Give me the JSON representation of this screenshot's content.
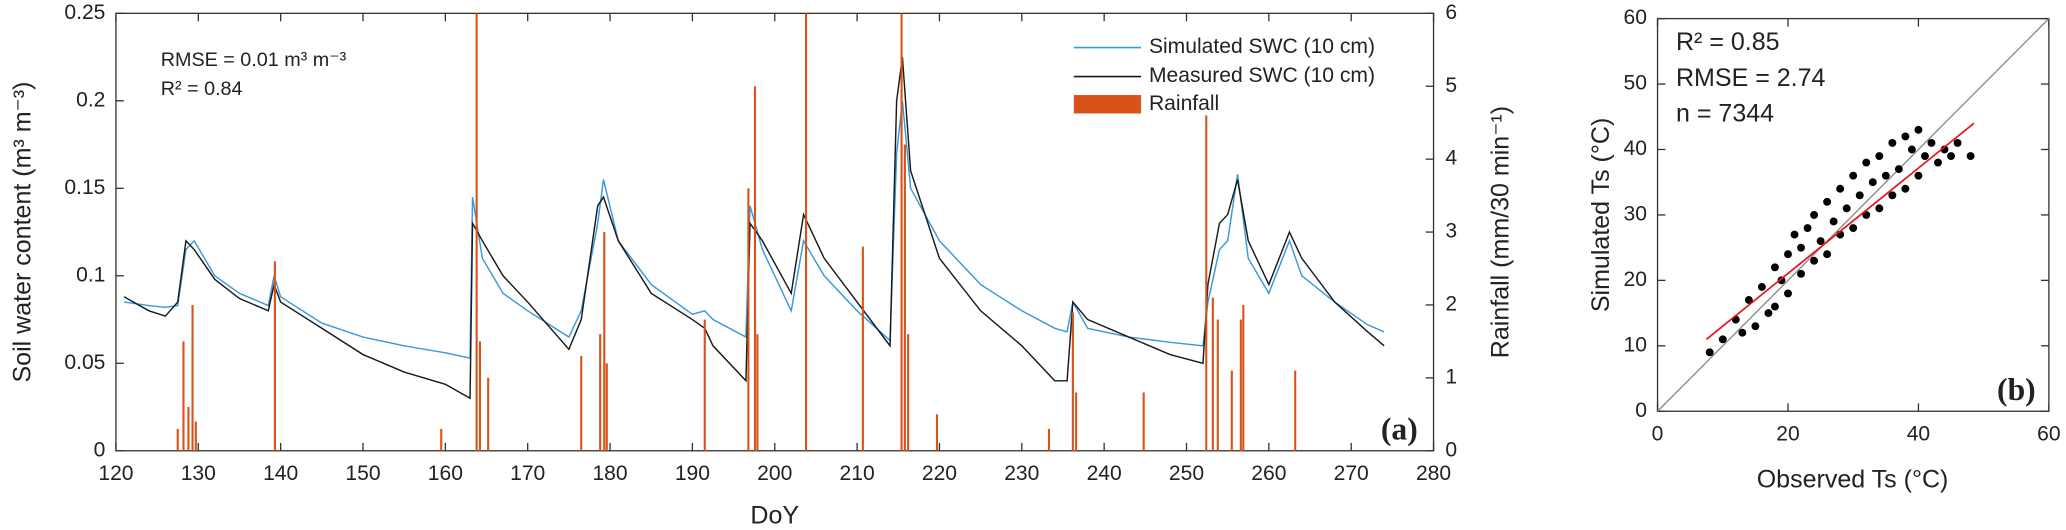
{
  "chart_data": [
    {
      "type": "line",
      "xlabel": "DoY",
      "ylabel": "Soil water content (m³ m⁻³)",
      "y2label": "Rainfall (mm/30 min⁻¹)",
      "annotations": [
        "RMSE = 0.01 m³ m⁻³",
        "R² = 0.84"
      ],
      "panel_label": "(a)",
      "legend": "upper right",
      "xlim": [
        120,
        280
      ],
      "xticks": [
        120,
        130,
        140,
        150,
        160,
        170,
        180,
        190,
        200,
        210,
        220,
        230,
        240,
        250,
        260,
        270,
        280
      ],
      "ylim": [
        0,
        0.25
      ],
      "yticks": [
        0,
        0.05,
        0.1,
        0.15,
        0.2,
        0.25
      ],
      "y2lim": [
        0,
        6
      ],
      "y2ticks": [
        0,
        1,
        2,
        3,
        4,
        5,
        6
      ],
      "series": [
        {
          "name": "Simulated SWC (10 cm)",
          "color": "#3a9ad9",
          "x": [
            121,
            124,
            126,
            127.5,
            128.5,
            129.5,
            132,
            135,
            138.5,
            139.2,
            140,
            145,
            150,
            155,
            160,
            163,
            163.3,
            164.5,
            167,
            170,
            175,
            176.5,
            178.5,
            179.2,
            181,
            185,
            190,
            191.5,
            192.5,
            196.5,
            197,
            198.5,
            202,
            203.5,
            206,
            210,
            214,
            214.8,
            215.5,
            216.5,
            220,
            225,
            230,
            234,
            235.5,
            236.2,
            238,
            243,
            248,
            252,
            252.6,
            254,
            255,
            256.2,
            257.5,
            260,
            262.5,
            264,
            268,
            272,
            274
          ],
          "values": [
            0.085,
            0.083,
            0.082,
            0.083,
            0.115,
            0.12,
            0.1,
            0.09,
            0.083,
            0.1,
            0.088,
            0.073,
            0.065,
            0.06,
            0.056,
            0.053,
            0.145,
            0.11,
            0.09,
            0.08,
            0.065,
            0.08,
            0.13,
            0.155,
            0.12,
            0.095,
            0.078,
            0.08,
            0.075,
            0.065,
            0.14,
            0.115,
            0.08,
            0.12,
            0.1,
            0.08,
            0.063,
            0.17,
            0.2,
            0.15,
            0.12,
            0.095,
            0.08,
            0.07,
            0.068,
            0.085,
            0.07,
            0.065,
            0.062,
            0.06,
            0.085,
            0.115,
            0.12,
            0.158,
            0.11,
            0.09,
            0.12,
            0.1,
            0.085,
            0.072,
            0.068
          ]
        },
        {
          "name": "Measured SWC (10 cm)",
          "color": "#1a1a1a",
          "x": [
            121,
            124,
            126,
            127.5,
            128.5,
            129.5,
            132,
            135,
            138.5,
            139.2,
            140,
            145,
            150,
            155,
            160,
            163,
            163.3,
            164.5,
            167,
            170,
            175,
            176.5,
            178.5,
            179.2,
            181,
            185,
            190,
            191.5,
            192.5,
            196.5,
            197,
            198.5,
            202,
            203.5,
            206,
            210,
            214,
            214.8,
            215.5,
            216.5,
            220,
            225,
            230,
            234,
            235.5,
            236.2,
            238,
            243,
            248,
            252,
            252.6,
            254,
            255,
            256.2,
            257.5,
            260,
            262.5,
            264,
            268,
            272,
            274
          ],
          "values": [
            0.088,
            0.08,
            0.077,
            0.085,
            0.12,
            0.115,
            0.098,
            0.087,
            0.08,
            0.095,
            0.085,
            0.07,
            0.055,
            0.045,
            0.038,
            0.03,
            0.13,
            0.12,
            0.1,
            0.085,
            0.058,
            0.075,
            0.14,
            0.145,
            0.12,
            0.09,
            0.075,
            0.07,
            0.06,
            0.04,
            0.13,
            0.12,
            0.09,
            0.135,
            0.11,
            0.085,
            0.06,
            0.2,
            0.225,
            0.16,
            0.11,
            0.08,
            0.06,
            0.04,
            0.04,
            0.085,
            0.075,
            0.065,
            0.055,
            0.05,
            0.095,
            0.13,
            0.135,
            0.155,
            0.12,
            0.095,
            0.125,
            0.11,
            0.085,
            0.068,
            0.06
          ]
        },
        {
          "name": "Rainfall",
          "type": "bar",
          "axis": "y2",
          "color": "#d95319",
          "x": [
            127.5,
            128.2,
            128.8,
            129.3,
            129.7,
            139.3,
            159.5,
            163.8,
            164.2,
            165.2,
            176.5,
            178.8,
            179.3,
            179.6,
            191.5,
            196.8,
            197.6,
            197.9,
            203.8,
            210.7,
            215.4,
            215.8,
            216.2,
            219.7,
            233.3,
            236.2,
            236.6,
            244.8,
            252.4,
            253.2,
            253.8,
            255.5,
            256.6,
            256.9,
            263.2
          ],
          "values": [
            0.3,
            1.5,
            0.6,
            2.0,
            0.4,
            2.6,
            0.3,
            6.0,
            1.5,
            1.0,
            1.3,
            1.6,
            3.0,
            1.2,
            1.8,
            3.6,
            5.0,
            1.6,
            6.0,
            2.8,
            6.0,
            4.2,
            1.6,
            0.5,
            0.3,
            1.9,
            0.8,
            0.8,
            4.6,
            2.1,
            1.8,
            1.1,
            1.8,
            2.0,
            1.1
          ]
        }
      ]
    },
    {
      "type": "scatter",
      "xlabel": "Observed Ts (°C)",
      "ylabel": "Simulated Ts (°C)",
      "annotations": [
        "R² = 0.85",
        "RMSE = 2.74",
        "n = 7344"
      ],
      "panel_label": "(b)",
      "xlim": [
        0,
        60
      ],
      "xticks": [
        0,
        20,
        40,
        60
      ],
      "ylim": [
        0,
        60
      ],
      "yticks": [
        0,
        10,
        20,
        30,
        40,
        50,
        60
      ],
      "series": [
        {
          "color": "#000000",
          "x": [
            8,
            10,
            12,
            13,
            14,
            15,
            16,
            17,
            18,
            18,
            19,
            20,
            20,
            21,
            22,
            22,
            23,
            24,
            24,
            25,
            26,
            26,
            27,
            28,
            28,
            29,
            30,
            30,
            31,
            32,
            32,
            33,
            34,
            34,
            35,
            36,
            36,
            37,
            38,
            38,
            39,
            40,
            40,
            41,
            42,
            43,
            44,
            45,
            46,
            48
          ],
          "values": [
            9,
            11,
            14,
            12,
            17,
            13,
            19,
            15,
            22,
            16,
            20,
            24,
            18,
            27,
            21,
            25,
            28,
            23,
            30,
            26,
            32,
            24,
            29,
            34,
            27,
            31,
            36,
            28,
            33,
            38,
            30,
            35,
            39,
            31,
            36,
            41,
            33,
            37,
            42,
            34,
            40,
            43,
            36,
            39,
            41,
            38,
            40,
            39,
            41,
            39
          ]
        }
      ],
      "fit_line": {
        "color": "#e8141b",
        "x": [
          7.5,
          48.5
        ],
        "values": [
          11,
          44
        ]
      }
    }
  ]
}
